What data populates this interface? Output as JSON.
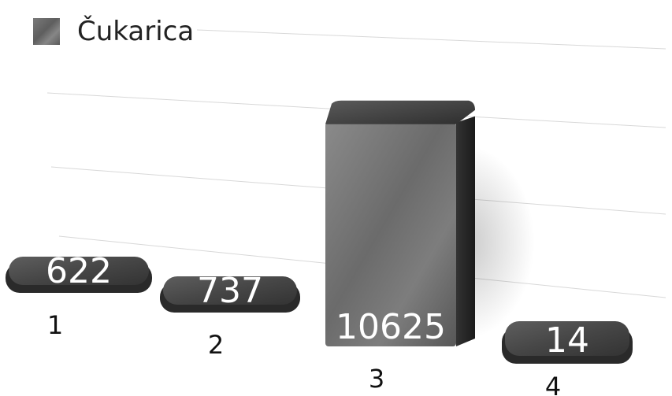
{
  "chart_data": {
    "type": "bar",
    "categories": [
      "1",
      "2",
      "3",
      "4"
    ],
    "series": [
      {
        "name": "Čukarica",
        "values": [
          622,
          737,
          10625,
          14
        ]
      }
    ],
    "title": "",
    "xlabel": "",
    "ylabel": "",
    "ylim": [
      0,
      13000
    ],
    "grid": true,
    "legend": "top-left",
    "colors": {
      "bar_face": "#6e6e6e",
      "bar_top": "#3e3e3e",
      "bar_side": "#2b2b2b",
      "grid": "#d8d8d8",
      "data_label": "#ffffff",
      "tick_label": "#111111"
    }
  }
}
